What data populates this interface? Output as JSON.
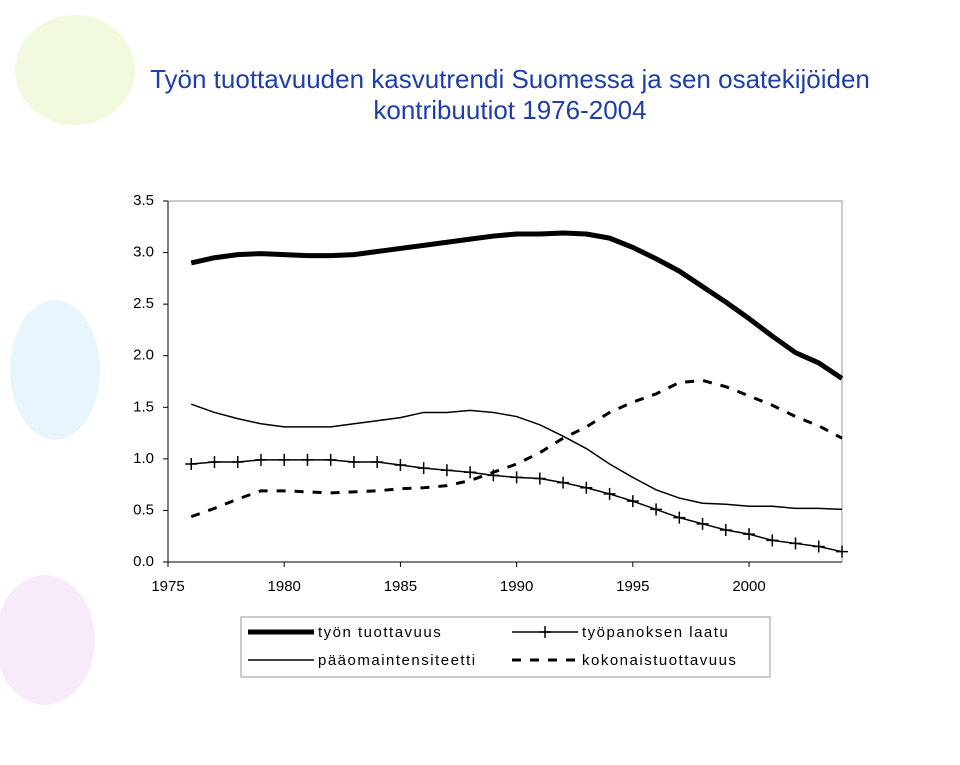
{
  "chart_data": {
    "type": "line",
    "title": [
      "Työn tuottavuuden kasvutrendi Suomessa ja sen osatekijöiden",
      "kontribuutiot 1976-2004"
    ],
    "x": [
      1976,
      1977,
      1978,
      1979,
      1980,
      1981,
      1982,
      1983,
      1984,
      1985,
      1986,
      1987,
      1988,
      1989,
      1990,
      1991,
      1992,
      1993,
      1994,
      1995,
      1996,
      1997,
      1998,
      1999,
      2000,
      2001,
      2002,
      2003,
      2004
    ],
    "xlim": [
      1975,
      2004
    ],
    "xticks": [
      1975,
      1980,
      1985,
      1990,
      1995,
      2000
    ],
    "ylim": [
      0,
      3.5
    ],
    "yticks": [
      {
        "value": 0,
        "label": "0.0"
      },
      0.5,
      {
        "value": 1,
        "label": "1.0"
      },
      1.5,
      {
        "value": 2,
        "label": "2.0"
      },
      2.5,
      {
        "value": 3,
        "label": "3.0"
      },
      3.5
    ],
    "grid": false,
    "series": [
      {
        "name": "työn tuottavuus",
        "color": "#000000",
        "line_width": 5,
        "dash": "none",
        "marker": "none",
        "values": [
          2.9,
          2.95,
          2.98,
          2.99,
          2.98,
          2.97,
          2.97,
          2.98,
          3.01,
          3.04,
          3.07,
          3.1,
          3.13,
          3.16,
          3.18,
          3.18,
          3.19,
          3.18,
          3.14,
          3.05,
          2.94,
          2.82,
          2.67,
          2.52,
          2.36,
          2.19,
          2.03,
          1.93,
          1.78
        ]
      },
      {
        "name": "työpanoksen laatu",
        "color": "#000000",
        "line_width": 1.5,
        "dash": "none",
        "marker": "plus",
        "values": [
          0.95,
          0.97,
          0.97,
          0.99,
          0.99,
          0.99,
          0.99,
          0.97,
          0.97,
          0.94,
          0.91,
          0.89,
          0.87,
          0.84,
          0.82,
          0.81,
          0.77,
          0.72,
          0.66,
          0.59,
          0.51,
          0.43,
          0.37,
          0.31,
          0.27,
          0.21,
          0.18,
          0.15,
          0.1
        ]
      },
      {
        "name": "pääomaintensiteetti",
        "color": "#000000",
        "line_width": 1.5,
        "dash": "none",
        "marker": "none",
        "values": [
          1.53,
          1.45,
          1.39,
          1.34,
          1.31,
          1.31,
          1.31,
          1.34,
          1.37,
          1.4,
          1.45,
          1.45,
          1.47,
          1.45,
          1.41,
          1.33,
          1.22,
          1.1,
          0.95,
          0.82,
          0.7,
          0.62,
          0.57,
          0.56,
          0.54,
          0.54,
          0.52,
          0.52,
          0.51
        ]
      },
      {
        "name": "kokonaistuottavuus",
        "color": "#000000",
        "line_width": 3,
        "dash": "9 9",
        "marker": "none",
        "values": [
          0.44,
          0.52,
          0.61,
          0.69,
          0.69,
          0.68,
          0.67,
          0.68,
          0.69,
          0.71,
          0.72,
          0.74,
          0.79,
          0.87,
          0.95,
          1.06,
          1.2,
          1.31,
          1.45,
          1.55,
          1.63,
          1.74,
          1.76,
          1.7,
          1.61,
          1.52,
          1.41,
          1.32,
          1.2
        ]
      }
    ]
  }
}
